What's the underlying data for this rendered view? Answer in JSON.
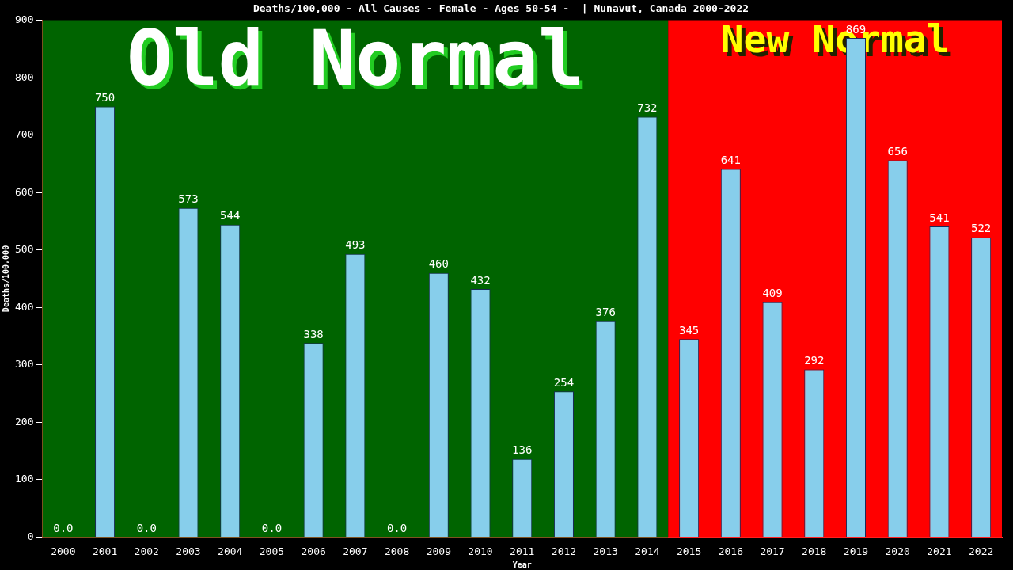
{
  "chart_data": {
    "type": "bar",
    "title": "Deaths/100,000 - All Causes - Female - Ages 50-54 -  | Nunavut, Canada 2000-2022",
    "xlabel": "Year",
    "ylabel": "Deaths/100,000",
    "categories": [
      "2000",
      "2001",
      "2002",
      "2003",
      "2004",
      "2005",
      "2006",
      "2007",
      "2008",
      "2009",
      "2010",
      "2011",
      "2012",
      "2013",
      "2014",
      "2015",
      "2016",
      "2017",
      "2018",
      "2019",
      "2020",
      "2021",
      "2022"
    ],
    "values": [
      0,
      750,
      0,
      573,
      544,
      0,
      338,
      493,
      0,
      460,
      432,
      136,
      254,
      376,
      732,
      345,
      641,
      409,
      292,
      869,
      656,
      541,
      522
    ],
    "value_labels": [
      "0.0",
      "750",
      "0.0",
      "573",
      "544",
      "0.0",
      "338",
      "493",
      "0.0",
      "460",
      "432",
      "136",
      "254",
      "376",
      "732",
      "345",
      "641",
      "409",
      "292",
      "869",
      "656",
      "541",
      "522"
    ],
    "color": "#87ceeb",
    "ylim": [
      0,
      900
    ],
    "yticks": [
      0,
      100,
      200,
      300,
      400,
      500,
      600,
      700,
      800,
      900
    ],
    "bands": [
      {
        "axis": "x",
        "from": "2000",
        "to": "2014",
        "label": "Old Normal",
        "color": "#006400"
      },
      {
        "axis": "x",
        "from": "2015",
        "to": "2022",
        "label": "New Normal",
        "color": "#ff0000"
      }
    ],
    "grid": false,
    "legend": false
  }
}
